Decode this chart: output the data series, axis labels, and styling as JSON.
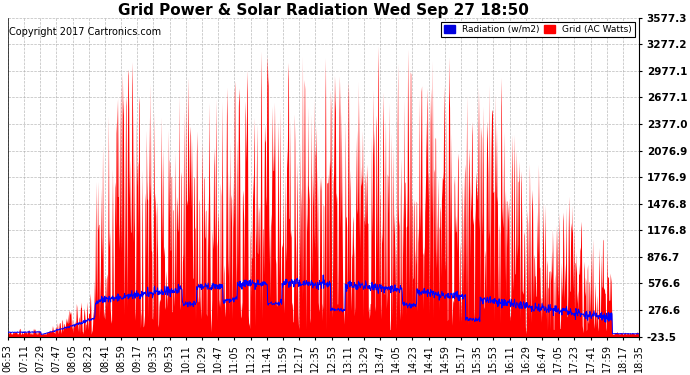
{
  "title": "Grid Power & Solar Radiation Wed Sep 27 18:50",
  "copyright": "Copyright 2017 Cartronics.com",
  "legend_radiation": "Radiation (w/m2)",
  "legend_grid": "Grid (AC Watts)",
  "y_ticks": [
    3577.3,
    3277.2,
    2977.1,
    2677.1,
    2377.0,
    2076.9,
    1776.9,
    1476.8,
    1176.8,
    876.7,
    576.6,
    276.6,
    -23.5
  ],
  "y_min": -23.5,
  "y_max": 3577.3,
  "x_labels": [
    "06:53",
    "07:11",
    "07:29",
    "07:47",
    "08:05",
    "08:23",
    "08:41",
    "08:59",
    "09:17",
    "09:35",
    "09:53",
    "10:11",
    "10:29",
    "10:47",
    "11:05",
    "11:23",
    "11:41",
    "11:59",
    "12:17",
    "12:35",
    "12:53",
    "13:11",
    "13:29",
    "13:47",
    "14:05",
    "14:23",
    "14:41",
    "14:59",
    "15:17",
    "15:35",
    "15:53",
    "16:11",
    "16:29",
    "16:47",
    "17:05",
    "17:23",
    "17:41",
    "17:59",
    "18:17",
    "18:35"
  ],
  "bg_color": "#ffffff",
  "plot_bg_color": "#ffffff",
  "grid_color": "#aaaaaa",
  "red_color": "#ff0000",
  "blue_color": "#0000ff",
  "title_fontsize": 11,
  "axis_label_fontsize": 7,
  "ytick_fontsize": 7.5,
  "copyright_fontsize": 7
}
